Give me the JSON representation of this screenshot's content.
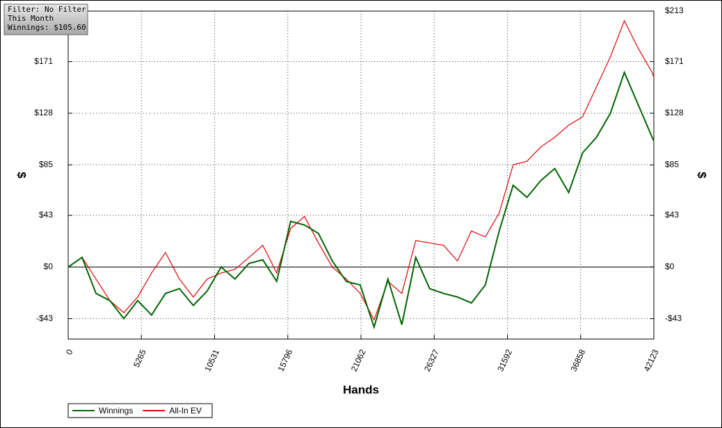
{
  "chart_data": {
    "type": "line",
    "annotations": [
      "Filter: No Filter",
      "This Month",
      "Winnings: $105.60"
    ],
    "xlabel": "Hands",
    "ylabel": "$",
    "y2label": "$",
    "x": [
      0,
      1000,
      2000,
      3000,
      4000,
      5000,
      6000,
      7000,
      8000,
      9000,
      10000,
      11000,
      12000,
      13000,
      14000,
      15000,
      16000,
      17000,
      18000,
      19000,
      20000,
      21000,
      22000,
      23000,
      24000,
      25000,
      26000,
      27000,
      28000,
      29000,
      30000,
      31000,
      32000,
      33000,
      34000,
      35000,
      36000,
      37000,
      38000,
      39000,
      40000,
      41000,
      42000,
      42123
    ],
    "series": [
      {
        "name": "Winnings",
        "color": "#006400",
        "values": [
          0,
          8,
          -22,
          -28,
          -43,
          -28,
          -40,
          -22,
          -18,
          -32,
          -20,
          0,
          -10,
          3,
          6,
          -12,
          38,
          35,
          28,
          5,
          -12,
          -15,
          -50,
          -10,
          -48,
          8,
          -18,
          -22,
          -25,
          -30,
          -15,
          30,
          68,
          58,
          72,
          82,
          62,
          95,
          108,
          128,
          162,
          135,
          108,
          105
        ]
      },
      {
        "name": "All-In EV",
        "color": "#e00000",
        "values": [
          0,
          8,
          -10,
          -28,
          -38,
          -25,
          -5,
          12,
          -10,
          -25,
          -10,
          -5,
          -2,
          8,
          18,
          -5,
          32,
          42,
          20,
          0,
          -10,
          -22,
          -44,
          -12,
          -22,
          22,
          20,
          18,
          5,
          30,
          25,
          45,
          85,
          88,
          100,
          108,
          118,
          125,
          150,
          175,
          205,
          182,
          162,
          158
        ]
      }
    ],
    "xlim": [
      0,
      42123
    ],
    "xticks": [
      0,
      5265,
      10531,
      15796,
      21062,
      26327,
      31592,
      36858,
      42123
    ],
    "ylim": [
      -60,
      213
    ],
    "yticks": [
      {
        "value": -43,
        "label": "-$43"
      },
      {
        "value": 0,
        "label": "$0"
      },
      {
        "value": 43,
        "label": "$43"
      },
      {
        "value": 85,
        "label": "$85"
      },
      {
        "value": 128,
        "label": "$128"
      },
      {
        "value": 171,
        "label": "$171"
      },
      {
        "value": 213,
        "label": "$213"
      }
    ],
    "grid": true,
    "legend": "bottom-left"
  }
}
